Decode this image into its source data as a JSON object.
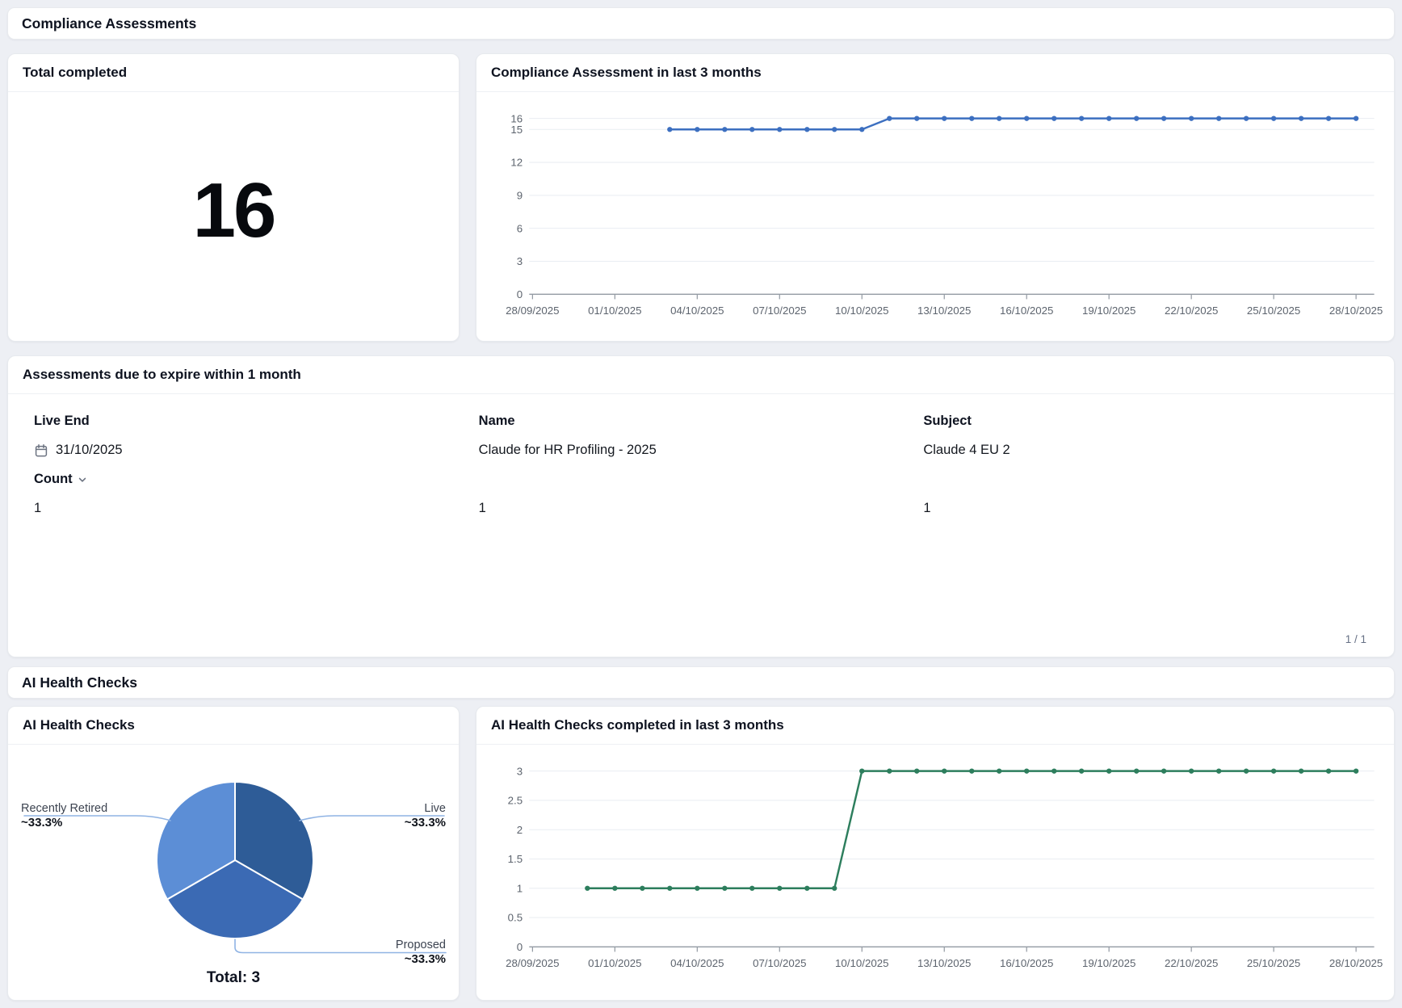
{
  "sections": {
    "compliance": {
      "title": "Compliance Assessments"
    },
    "health": {
      "title": "AI Health Checks"
    }
  },
  "total_card": {
    "title": "Total completed",
    "value": "16"
  },
  "trend_card": {
    "title": "Compliance Assessment in last 3 months"
  },
  "expire_card": {
    "title": "Assessments due to expire within 1 month",
    "columns": [
      "Live End",
      "Name",
      "Subject"
    ],
    "row": {
      "live_end": "31/10/2025",
      "name": "Claude for HR Profiling - 2025",
      "subject": "Claude 4 EU 2"
    },
    "count_label": "Count",
    "counts": [
      "1",
      "1",
      "1"
    ],
    "pagination": "1 / 1"
  },
  "pie_card": {
    "title": "AI Health Checks",
    "total_label": "Total: 3"
  },
  "health_trend_card": {
    "title": "AI Health Checks completed in last 3 months"
  },
  "colors": {
    "compliance_line": "#3c6fc0",
    "health_line": "#2d7e5d",
    "grid": "#e9edf2",
    "axis": "#939aa3",
    "leader": "#8fb3e4"
  },
  "chart_data": [
    {
      "id": "compliance-trend",
      "type": "line",
      "title": "Compliance Assessment in last 3 months",
      "color": "#3c6fc0",
      "ylim": [
        0,
        16
      ],
      "y_ticks": [
        0,
        3,
        6,
        9,
        12,
        15,
        16
      ],
      "xlim_days": [
        0,
        30
      ],
      "grid": true,
      "x_ticks": [
        {
          "day": 0,
          "label": "28/09/2025"
        },
        {
          "day": 3,
          "label": "01/10/2025"
        },
        {
          "day": 6,
          "label": "04/10/2025"
        },
        {
          "day": 9,
          "label": "07/10/2025"
        },
        {
          "day": 12,
          "label": "10/10/2025"
        },
        {
          "day": 15,
          "label": "13/10/2025"
        },
        {
          "day": 18,
          "label": "16/10/2025"
        },
        {
          "day": 21,
          "label": "19/10/2025"
        },
        {
          "day": 24,
          "label": "22/10/2025"
        },
        {
          "day": 27,
          "label": "25/10/2025"
        },
        {
          "day": 30,
          "label": "28/10/2025"
        }
      ],
      "points": [
        {
          "date": "03/10/2025",
          "day": 5,
          "value": 15
        },
        {
          "date": "04/10/2025",
          "day": 6,
          "value": 15
        },
        {
          "date": "05/10/2025",
          "day": 7,
          "value": 15
        },
        {
          "date": "06/10/2025",
          "day": 8,
          "value": 15
        },
        {
          "date": "07/10/2025",
          "day": 9,
          "value": 15
        },
        {
          "date": "08/10/2025",
          "day": 10,
          "value": 15
        },
        {
          "date": "09/10/2025",
          "day": 11,
          "value": 15
        },
        {
          "date": "10/10/2025",
          "day": 12,
          "value": 15
        },
        {
          "date": "11/10/2025",
          "day": 13,
          "value": 16
        },
        {
          "date": "12/10/2025",
          "day": 14,
          "value": 16
        },
        {
          "date": "13/10/2025",
          "day": 15,
          "value": 16
        },
        {
          "date": "14/10/2025",
          "day": 16,
          "value": 16
        },
        {
          "date": "15/10/2025",
          "day": 17,
          "value": 16
        },
        {
          "date": "16/10/2025",
          "day": 18,
          "value": 16
        },
        {
          "date": "17/10/2025",
          "day": 19,
          "value": 16
        },
        {
          "date": "18/10/2025",
          "day": 20,
          "value": 16
        },
        {
          "date": "19/10/2025",
          "day": 21,
          "value": 16
        },
        {
          "date": "20/10/2025",
          "day": 22,
          "value": 16
        },
        {
          "date": "21/10/2025",
          "day": 23,
          "value": 16
        },
        {
          "date": "22/10/2025",
          "day": 24,
          "value": 16
        },
        {
          "date": "23/10/2025",
          "day": 25,
          "value": 16
        },
        {
          "date": "24/10/2025",
          "day": 26,
          "value": 16
        },
        {
          "date": "25/10/2025",
          "day": 27,
          "value": 16
        },
        {
          "date": "26/10/2025",
          "day": 28,
          "value": 16
        },
        {
          "date": "27/10/2025",
          "day": 29,
          "value": 16
        },
        {
          "date": "28/10/2025",
          "day": 30,
          "value": 16
        }
      ]
    },
    {
      "id": "health-pie",
      "type": "pie",
      "title": "AI Health Checks",
      "total": 3,
      "total_label": "Total: 3",
      "slices": [
        {
          "label": "Live",
          "value": 1,
          "pct_label": "~33.3%",
          "color": "#2e5c97"
        },
        {
          "label": "Proposed",
          "value": 1,
          "pct_label": "~33.3%",
          "color": "#3b6ab4"
        },
        {
          "label": "Recently Retired",
          "value": 1,
          "pct_label": "~33.3%",
          "color": "#5c8ed6"
        }
      ]
    },
    {
      "id": "health-trend",
      "type": "line",
      "title": "AI Health Checks completed in last 3 months",
      "color": "#2d7e5d",
      "ylim": [
        0,
        3
      ],
      "y_ticks": [
        0,
        0.5,
        1,
        1.5,
        2,
        2.5,
        3
      ],
      "xlim_days": [
        0,
        30
      ],
      "grid": true,
      "x_ticks": [
        {
          "day": 0,
          "label": "28/09/2025"
        },
        {
          "day": 3,
          "label": "01/10/2025"
        },
        {
          "day": 6,
          "label": "04/10/2025"
        },
        {
          "day": 9,
          "label": "07/10/2025"
        },
        {
          "day": 12,
          "label": "10/10/2025"
        },
        {
          "day": 15,
          "label": "13/10/2025"
        },
        {
          "day": 18,
          "label": "16/10/2025"
        },
        {
          "day": 21,
          "label": "19/10/2025"
        },
        {
          "day": 24,
          "label": "22/10/2025"
        },
        {
          "day": 27,
          "label": "25/10/2025"
        },
        {
          "day": 30,
          "label": "28/10/2025"
        }
      ],
      "points": [
        {
          "date": "30/09/2025",
          "day": 2,
          "value": 1
        },
        {
          "date": "01/10/2025",
          "day": 3,
          "value": 1
        },
        {
          "date": "02/10/2025",
          "day": 4,
          "value": 1
        },
        {
          "date": "03/10/2025",
          "day": 5,
          "value": 1
        },
        {
          "date": "04/10/2025",
          "day": 6,
          "value": 1
        },
        {
          "date": "05/10/2025",
          "day": 7,
          "value": 1
        },
        {
          "date": "06/10/2025",
          "day": 8,
          "value": 1
        },
        {
          "date": "07/10/2025",
          "day": 9,
          "value": 1
        },
        {
          "date": "08/10/2025",
          "day": 10,
          "value": 1
        },
        {
          "date": "09/10/2025",
          "day": 11,
          "value": 1
        },
        {
          "date": "10/10/2025",
          "day": 12,
          "value": 3
        },
        {
          "date": "11/10/2025",
          "day": 13,
          "value": 3
        },
        {
          "date": "12/10/2025",
          "day": 14,
          "value": 3
        },
        {
          "date": "13/10/2025",
          "day": 15,
          "value": 3
        },
        {
          "date": "14/10/2025",
          "day": 16,
          "value": 3
        },
        {
          "date": "15/10/2025",
          "day": 17,
          "value": 3
        },
        {
          "date": "16/10/2025",
          "day": 18,
          "value": 3
        },
        {
          "date": "17/10/2025",
          "day": 19,
          "value": 3
        },
        {
          "date": "18/10/2025",
          "day": 20,
          "value": 3
        },
        {
          "date": "19/10/2025",
          "day": 21,
          "value": 3
        },
        {
          "date": "20/10/2025",
          "day": 22,
          "value": 3
        },
        {
          "date": "21/10/2025",
          "day": 23,
          "value": 3
        },
        {
          "date": "22/10/2025",
          "day": 24,
          "value": 3
        },
        {
          "date": "23/10/2025",
          "day": 25,
          "value": 3
        },
        {
          "date": "24/10/2025",
          "day": 26,
          "value": 3
        },
        {
          "date": "25/10/2025",
          "day": 27,
          "value": 3
        },
        {
          "date": "26/10/2025",
          "day": 28,
          "value": 3
        },
        {
          "date": "27/10/2025",
          "day": 29,
          "value": 3
        },
        {
          "date": "28/10/2025",
          "day": 30,
          "value": 3
        }
      ]
    }
  ]
}
